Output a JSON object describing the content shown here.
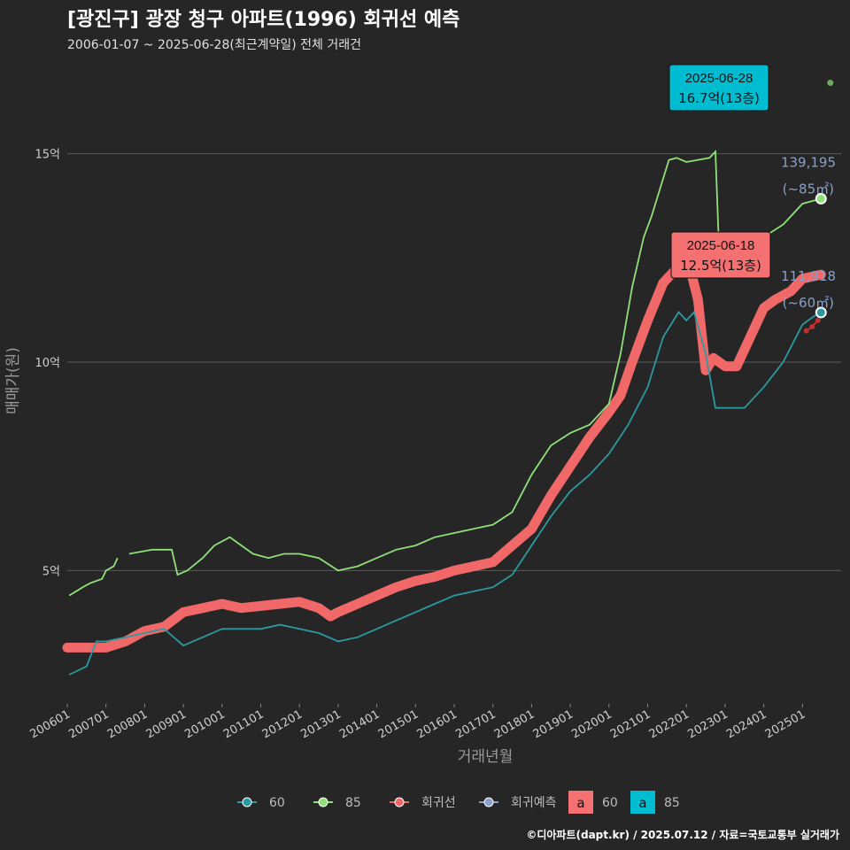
{
  "title": "[광진구] 광장 청구 아파트(1996) 회귀선 예측",
  "subtitle": "2006-01-07 ~ 2025-06-28(최근계약일) 전체 거래건",
  "credit": "©디아파트(dapt.kr) / 2025.07.12 / 자료=국토교통부 실거래가",
  "colors": {
    "background": "#262626",
    "grid": "#5a5a5a",
    "series_60": "#2a9aa0",
    "series_85": "#90e07a",
    "regression": "#f06868",
    "forecast": "#8aa0c8",
    "label_85_bg": "#00bcd0",
    "label_60_bg": "#f57070"
  },
  "chart_data": {
    "type": "line",
    "xlabel": "거래년월",
    "ylabel": "매매가(원)",
    "x_ticks": [
      "200601",
      "200701",
      "200801",
      "200901",
      "201001",
      "201101",
      "201201",
      "201301",
      "201401",
      "201501",
      "201601",
      "201701",
      "201801",
      "201901",
      "202001",
      "202101",
      "202201",
      "202301",
      "202401",
      "202501"
    ],
    "y_ticks": [
      {
        "value": 5,
        "label": "5억"
      },
      {
        "value": 10,
        "label": "10억"
      },
      {
        "value": 15,
        "label": "15억"
      }
    ],
    "ylim": [
      1.8,
      17.2
    ],
    "xlim": [
      2006.0,
      2026.0
    ],
    "series": [
      {
        "name": "60",
        "key": "s60",
        "points": [
          [
            2006.05,
            2.5
          ],
          [
            2006.5,
            2.7
          ],
          [
            2006.75,
            3.3
          ],
          [
            2007.0,
            3.3
          ],
          [
            2007.5,
            3.4
          ],
          [
            2008.0,
            3.5
          ],
          [
            2008.5,
            3.6
          ],
          [
            2009.0,
            3.2
          ],
          [
            2009.5,
            3.4
          ],
          [
            2010.0,
            3.6
          ],
          [
            2010.5,
            3.6
          ],
          [
            2011.0,
            3.6
          ],
          [
            2011.5,
            3.7
          ],
          [
            2012.0,
            3.6
          ],
          [
            2012.5,
            3.5
          ],
          [
            2013.0,
            3.3
          ],
          [
            2013.5,
            3.4
          ],
          [
            2014.0,
            3.6
          ],
          [
            2014.5,
            3.8
          ],
          [
            2015.0,
            4.0
          ],
          [
            2015.5,
            4.2
          ],
          [
            2016.0,
            4.4
          ],
          [
            2016.5,
            4.5
          ],
          [
            2017.0,
            4.6
          ],
          [
            2017.5,
            4.9
          ],
          [
            2018.0,
            5.6
          ],
          [
            2018.5,
            6.3
          ],
          [
            2019.0,
            6.9
          ],
          [
            2019.5,
            7.3
          ],
          [
            2020.0,
            7.8
          ],
          [
            2020.5,
            8.5
          ],
          [
            2021.0,
            9.4
          ],
          [
            2021.4,
            10.6
          ],
          [
            2021.8,
            11.2
          ],
          [
            2022.0,
            11.0
          ],
          [
            2022.2,
            11.2
          ],
          [
            2022.5,
            10.2
          ],
          [
            2022.75,
            8.9
          ],
          [
            2023.0,
            8.9
          ],
          [
            2023.5,
            8.9
          ],
          [
            2024.0,
            9.4
          ],
          [
            2024.5,
            10.0
          ],
          [
            2025.0,
            10.9
          ],
          [
            2025.3,
            11.1
          ],
          [
            2025.48,
            11.19
          ]
        ]
      },
      {
        "name": "85",
        "key": "s85",
        "segments": [
          [
            [
              2006.05,
              4.4
            ],
            [
              2006.4,
              4.6
            ],
            [
              2006.6,
              4.7
            ],
            [
              2006.9,
              4.8
            ],
            [
              2007.0,
              5.0
            ],
            [
              2007.2,
              5.1
            ],
            [
              2007.3,
              5.3
            ]
          ],
          [
            [
              2007.6,
              5.4
            ],
            [
              2008.2,
              5.5
            ],
            [
              2008.7,
              5.5
            ],
            [
              2008.85,
              4.9
            ],
            [
              2009.1,
              5.0
            ],
            [
              2009.5,
              5.3
            ],
            [
              2009.8,
              5.6
            ],
            [
              2010.2,
              5.8
            ],
            [
              2010.5,
              5.6
            ],
            [
              2010.8,
              5.4
            ],
            [
              2011.2,
              5.3
            ],
            [
              2011.6,
              5.4
            ],
            [
              2012.0,
              5.4
            ],
            [
              2012.5,
              5.3
            ],
            [
              2013.0,
              5.0
            ],
            [
              2013.5,
              5.1
            ],
            [
              2014.0,
              5.3
            ],
            [
              2014.5,
              5.5
            ],
            [
              2015.0,
              5.6
            ],
            [
              2015.5,
              5.8
            ],
            [
              2016.0,
              5.9
            ],
            [
              2016.5,
              6.0
            ],
            [
              2017.0,
              6.1
            ],
            [
              2017.5,
              6.4
            ],
            [
              2018.0,
              7.3
            ],
            [
              2018.5,
              8.0
            ],
            [
              2019.0,
              8.3
            ],
            [
              2019.5,
              8.5
            ],
            [
              2020.0,
              9.0
            ],
            [
              2020.3,
              10.2
            ],
            [
              2020.6,
              11.8
            ],
            [
              2020.9,
              13.0
            ],
            [
              2021.1,
              13.5
            ],
            [
              2021.3,
              14.1
            ],
            [
              2021.55,
              14.85
            ],
            [
              2021.75,
              14.9
            ],
            [
              2022.0,
              14.8
            ],
            [
              2022.3,
              14.85
            ],
            [
              2022.6,
              14.9
            ],
            [
              2022.75,
              15.05
            ],
            [
              2022.85,
              12.6
            ],
            [
              2023.2,
              12.8
            ],
            [
              2023.5,
              12.9
            ],
            [
              2024.0,
              13.0
            ],
            [
              2024.5,
              13.3
            ],
            [
              2025.0,
              13.8
            ],
            [
              2025.48,
              13.92
            ]
          ]
        ]
      },
      {
        "name": "회귀선",
        "key": "reg",
        "points": [
          [
            2006.0,
            3.15
          ],
          [
            2006.5,
            3.15
          ],
          [
            2007.0,
            3.15
          ],
          [
            2007.5,
            3.3
          ],
          [
            2008.0,
            3.55
          ],
          [
            2008.5,
            3.65
          ],
          [
            2009.0,
            4.0
          ],
          [
            2009.5,
            4.1
          ],
          [
            2010.0,
            4.2
          ],
          [
            2010.5,
            4.1
          ],
          [
            2011.0,
            4.15
          ],
          [
            2011.5,
            4.2
          ],
          [
            2012.0,
            4.25
          ],
          [
            2012.5,
            4.1
          ],
          [
            2012.8,
            3.9
          ],
          [
            2013.0,
            4.0
          ],
          [
            2013.5,
            4.2
          ],
          [
            2014.0,
            4.4
          ],
          [
            2014.5,
            4.6
          ],
          [
            2015.0,
            4.75
          ],
          [
            2015.5,
            4.85
          ],
          [
            2016.0,
            5.0
          ],
          [
            2016.5,
            5.1
          ],
          [
            2017.0,
            5.2
          ],
          [
            2017.5,
            5.6
          ],
          [
            2018.0,
            6.0
          ],
          [
            2018.5,
            6.8
          ],
          [
            2019.0,
            7.5
          ],
          [
            2019.5,
            8.2
          ],
          [
            2020.0,
            8.8
          ],
          [
            2020.3,
            9.2
          ],
          [
            2020.6,
            10.0
          ],
          [
            2021.0,
            11.0
          ],
          [
            2021.4,
            11.9
          ],
          [
            2021.8,
            12.3
          ],
          [
            2022.0,
            12.6
          ],
          [
            2022.3,
            11.5
          ],
          [
            2022.5,
            9.8
          ],
          [
            2022.7,
            10.1
          ],
          [
            2023.0,
            9.9
          ],
          [
            2023.3,
            9.9
          ],
          [
            2023.6,
            10.5
          ],
          [
            2024.0,
            11.3
          ],
          [
            2024.3,
            11.5
          ],
          [
            2024.7,
            11.7
          ],
          [
            2025.0,
            12.0
          ],
          [
            2025.48,
            12.1
          ]
        ]
      },
      {
        "name": "회귀예측",
        "key": "fc",
        "points": [
          [
            2025.1,
            10.75
          ],
          [
            2025.25,
            10.85
          ],
          [
            2025.4,
            11.0
          ]
        ]
      }
    ],
    "annotations": [
      {
        "key": "peak85",
        "date": "2025-06-28",
        "price": "16.7억(13층)",
        "x": 2025.49,
        "y": 16.7
      },
      {
        "key": "peak60",
        "date": "2025-06-18",
        "price": "12.5억(13층)",
        "x": 2025.46,
        "y": 12.5
      }
    ],
    "end_labels": [
      {
        "key": "end85",
        "value": "139,195",
        "area": "(~85㎡)",
        "x": 2025.48,
        "y": 13.92
      },
      {
        "key": "end60",
        "value": "111,918",
        "area": "(~60㎡)",
        "x": 2025.48,
        "y": 11.19
      }
    ],
    "legend": {
      "placement": "bottom",
      "items": [
        {
          "key": "s60",
          "label": "60"
        },
        {
          "key": "s85",
          "label": "85"
        },
        {
          "key": "reg",
          "label": "회귀선"
        },
        {
          "key": "fc",
          "label": "회귀예측"
        }
      ],
      "label_items": [
        {
          "key": "l60",
          "glyph": "a",
          "label": "60"
        },
        {
          "key": "l85",
          "glyph": "a",
          "label": "85"
        }
      ]
    }
  }
}
